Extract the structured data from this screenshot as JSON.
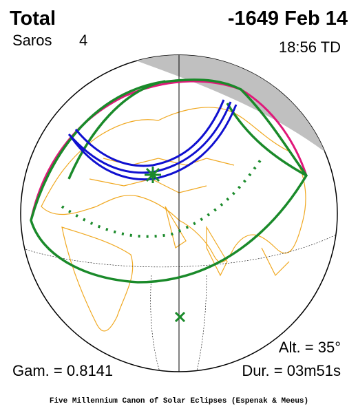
{
  "header": {
    "type": "Total",
    "date": "-1649 Feb 14",
    "saros_label": "Saros",
    "saros_number": "4",
    "time": "18:56 TD"
  },
  "footer": {
    "altitude": "Alt. = 35°",
    "gamma": "Gam. = 0.8141",
    "duration": "Dur. = 03m51s",
    "credit": "Five Millennium Canon of Solar Eclipses (Espenak & Meeus)"
  }
}
